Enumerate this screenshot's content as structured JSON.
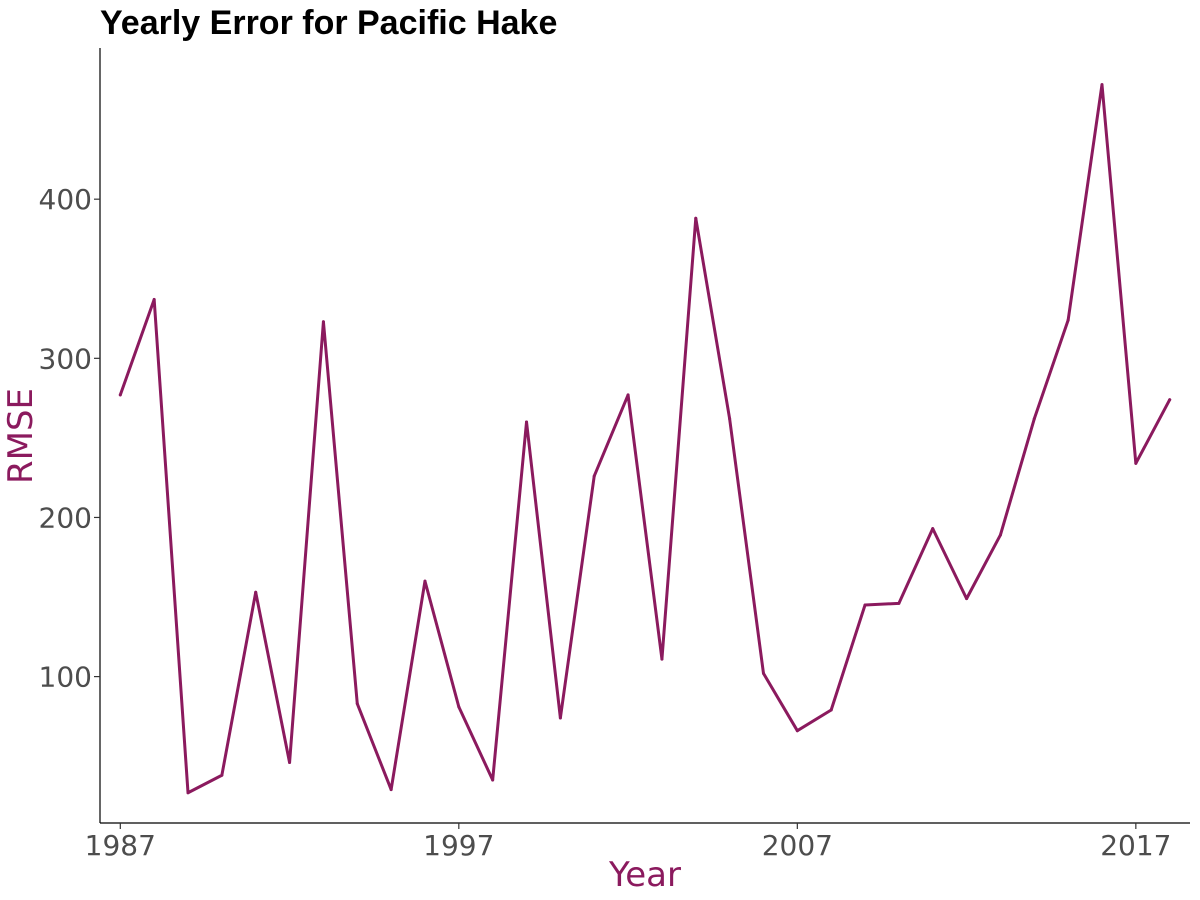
{
  "chart_data": {
    "type": "line",
    "title": "Yearly Error for Pacific Hake",
    "xlabel": "Year",
    "ylabel": "RMSE",
    "x": [
      1987,
      1988,
      1989,
      1990,
      1991,
      1992,
      1993,
      1994,
      1995,
      1996,
      1997,
      1998,
      1999,
      2000,
      2001,
      2002,
      2003,
      2004,
      2005,
      2006,
      2007,
      2008,
      2009,
      2010,
      2011,
      2012,
      2013,
      2014,
      2015,
      2016,
      2017,
      2018
    ],
    "series": [
      {
        "values": [
          277,
          337,
          27,
          38,
          153,
          46,
          323,
          83,
          29,
          160,
          81,
          35,
          260,
          74,
          226,
          277,
          111,
          388,
          262,
          102,
          66,
          79,
          145,
          146,
          193,
          149,
          189,
          262,
          324,
          472,
          234,
          274
        ]
      }
    ],
    "xlim": [
      1986.4,
      2018.6
    ],
    "ylim": [
      8,
      495
    ],
    "xticks": [
      "1987",
      "1997",
      "2007",
      "2017"
    ],
    "yticks": [
      "100",
      "200",
      "300",
      "400"
    ],
    "grid": false,
    "colors": {
      "line": "#8b1a5e",
      "axis_label": "#8b1a5e",
      "tick_label": "#4d4d4d",
      "title": "#000000"
    }
  }
}
